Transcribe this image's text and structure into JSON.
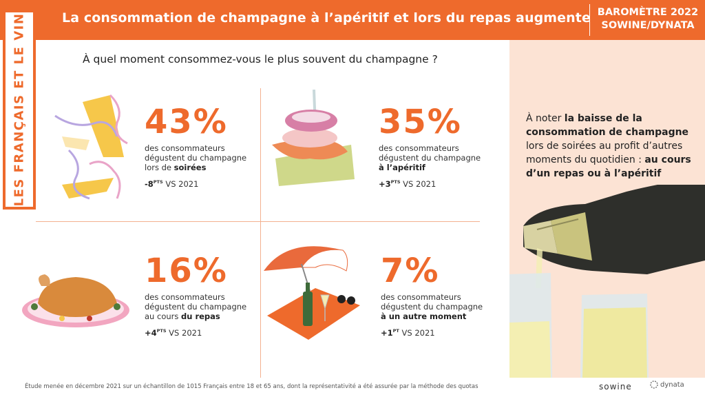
{
  "header": {
    "title": "La consommation de champagne à l’apéritif et lors du repas augmente",
    "barometer_line1": "BAROMÈTRE 2022",
    "barometer_line2": "SOWINE/DYNATA"
  },
  "sidebar": {
    "label": "LES FRANÇAIS ET LE VIN"
  },
  "question": "À quel moment consommez-vous le plus souvent du champagne ?",
  "stats": [
    {
      "value": "43%",
      "line1": "des consommateurs",
      "line2": "dégustent du champagne",
      "line3_pre": "lors de ",
      "line3_bold": "soirées",
      "delta_value": "-8",
      "delta_unit": "PTS",
      "delta_suffix": " VS 2021"
    },
    {
      "value": "35%",
      "line1": "des consommateurs",
      "line2": "dégustent du champagne",
      "line3_pre": "",
      "line3_bold": "à l’apéritif",
      "delta_value": "+3",
      "delta_unit": "PTS",
      "delta_suffix": " VS 2021"
    },
    {
      "value": "16%",
      "line1": "des consommateurs",
      "line2": "dégustent du champagne",
      "line3_pre": "au cours ",
      "line3_bold": "du repas",
      "delta_value": "+4",
      "delta_unit": "PTS",
      "delta_suffix": " VS 2021"
    },
    {
      "value": "7%",
      "line1": "des consommateurs",
      "line2": "dégustent du champagne",
      "line3_pre": "",
      "line3_bold": "à un autre moment",
      "delta_value": "+1",
      "delta_unit": "PT",
      "delta_suffix": " VS 2021"
    }
  ],
  "note": {
    "intro": "À noter ",
    "bold1": "la baisse de la consommation de champagne",
    "middle": " lors de soirées au profit d’autres moments du quotidien : ",
    "bold2": "au cours d’un repas ou à l’apéritif"
  },
  "footnote": "Étude menée en décembre 2021 sur un échantillon de 1015 Français entre 18 et 65 ans, dont la représentativité a été assurée par la méthode des quotas",
  "logos": {
    "sowine": "sowine",
    "dynata": "dynata"
  },
  "colors": {
    "accent": "#ee6a2c",
    "panel": "#fce3d4"
  }
}
